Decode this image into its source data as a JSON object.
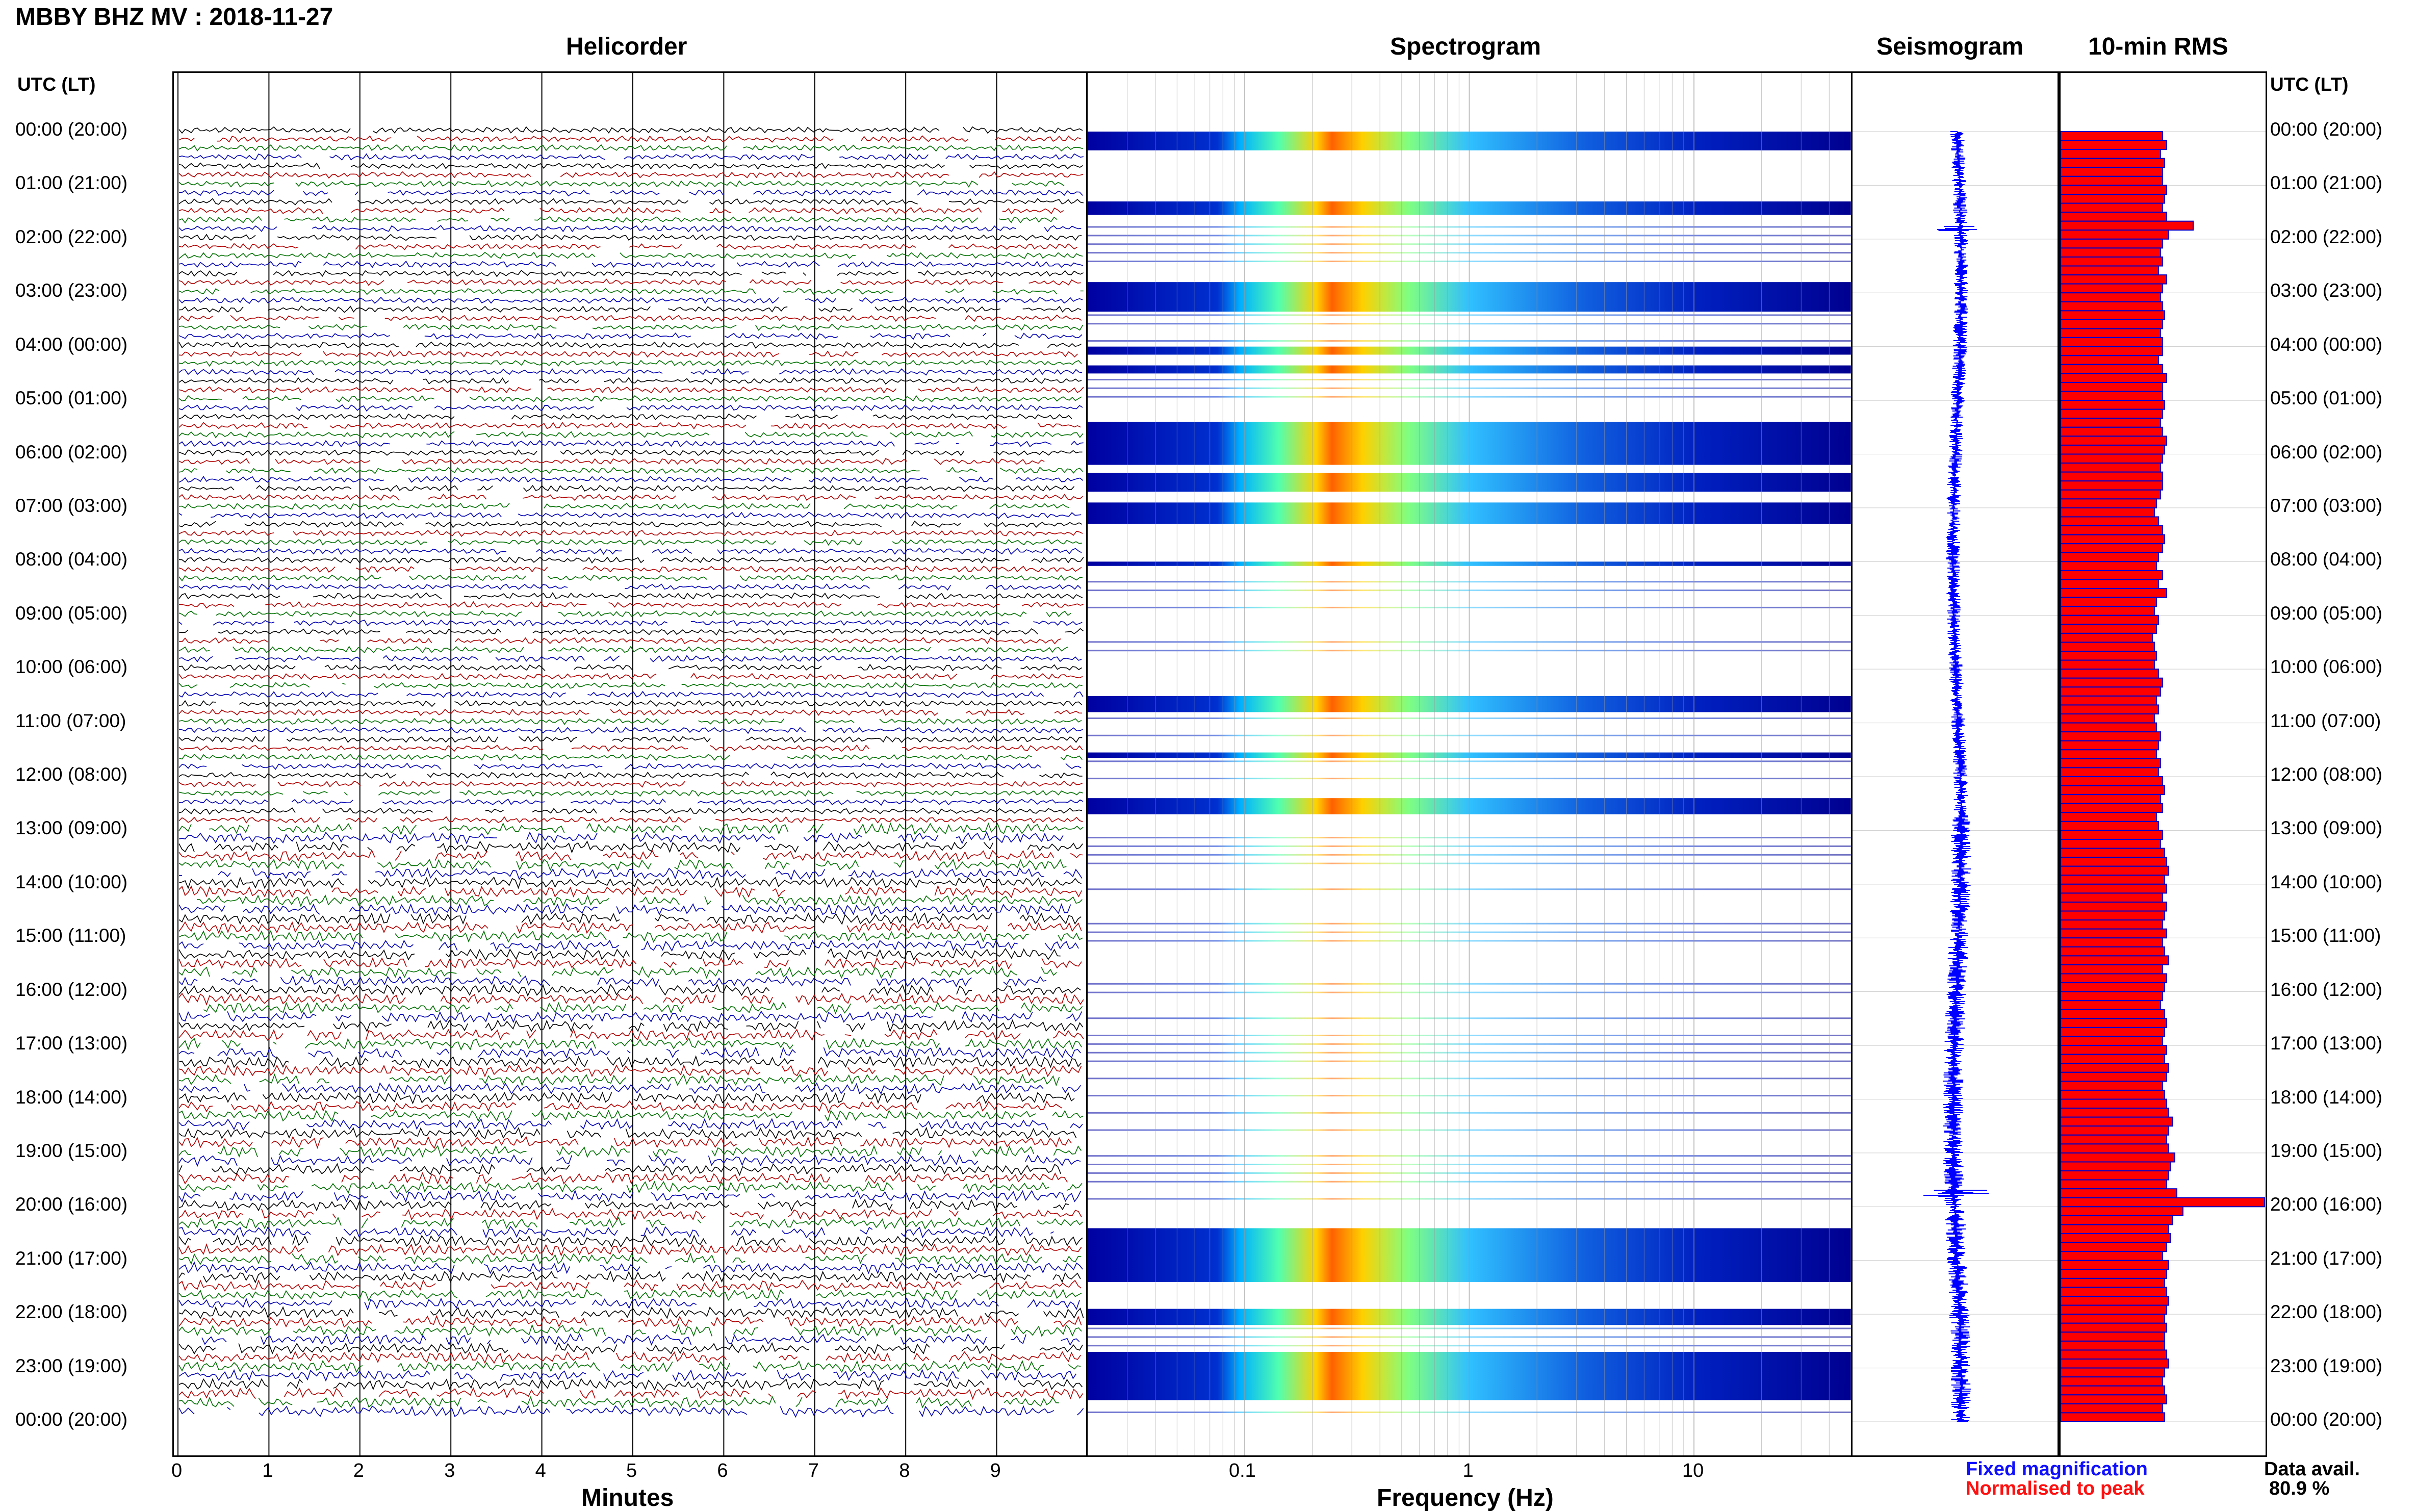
{
  "title": "MBBY BHZ MV : 2018-11-27",
  "left_axis_title": "UTC (LT)",
  "right_axis_title": "UTC (LT)",
  "panels": {
    "helicorder": "Helicorder",
    "spectrogram": "Spectrogram",
    "seismogram": "Seismogram",
    "rms": "10-min RMS"
  },
  "xaxis": {
    "minutes_title": "Minutes",
    "frequency_title": "Frequency (Hz)"
  },
  "legend": {
    "fixed": "Fixed magnification",
    "fixed_color": "#1010ff",
    "normalised": "Normalised to peak",
    "normalised_color": "#ff1010"
  },
  "availability": {
    "label": "Data avail.",
    "value": "80.9 %"
  },
  "colors": {
    "trace_cycle": [
      "#000000",
      "#b00000",
      "#007000",
      "#0000b0"
    ],
    "rms_fill": "#ff0000",
    "rms_edge": "#0000cc",
    "seismo": "#0000ff",
    "spec_low": "#00008c",
    "spec_high": "#ffff00"
  },
  "chart_data": [
    {
      "type": "line",
      "name": "helicorder",
      "title": "Helicorder",
      "xlabel": "Minutes",
      "x_ticks": [
        0,
        1,
        2,
        3,
        4,
        5,
        6,
        7,
        8,
        9
      ],
      "xlim": [
        0,
        10
      ],
      "rows_per_hour": 6,
      "hours": 24,
      "y_tick_labels": [
        "00:00 (20:00)",
        "01:00 (21:00)",
        "02:00 (22:00)",
        "03:00 (23:00)",
        "04:00 (00:00)",
        "05:00 (01:00)",
        "06:00 (02:00)",
        "07:00 (03:00)",
        "08:00 (04:00)",
        "09:00 (05:00)",
        "10:00 (06:00)",
        "11:00 (07:00)",
        "12:00 (08:00)",
        "13:00 (09:00)",
        "14:00 (10:00)",
        "15:00 (11:00)",
        "16:00 (12:00)",
        "17:00 (13:00)",
        "18:00 (14:00)",
        "19:00 (15:00)",
        "20:00 (16:00)",
        "21:00 (17:00)",
        "22:00 (18:00)",
        "23:00 (19:00)",
        "00:00 (20:00)"
      ]
    },
    {
      "type": "heatmap",
      "name": "spectrogram",
      "title": "Spectrogram",
      "xlabel": "Frequency (Hz)",
      "xscale": "log",
      "xlim": [
        0.02,
        50
      ],
      "x_ticks": [
        0.1,
        1,
        10
      ]
    },
    {
      "type": "line",
      "name": "seismogram",
      "title": "Seismogram"
    },
    {
      "type": "bar",
      "name": "rms",
      "title": "10-min RMS",
      "orientation": "horizontal",
      "series": [
        {
          "values": [
            0.5,
            0.52,
            0.49,
            0.51,
            0.5,
            0.5,
            0.52,
            0.51,
            0.5,
            0.52,
            0.65,
            0.53,
            0.5,
            0.49,
            0.5,
            0.48,
            0.52,
            0.5,
            0.49,
            0.5,
            0.51,
            0.5,
            0.49,
            0.5,
            0.5,
            0.48,
            0.5,
            0.52,
            0.5,
            0.5,
            0.51,
            0.5,
            0.49,
            0.5,
            0.52,
            0.51,
            0.5,
            0.49,
            0.5,
            0.5,
            0.49,
            0.47,
            0.46,
            0.48,
            0.5,
            0.51,
            0.5,
            0.48,
            0.47,
            0.5,
            0.48,
            0.52,
            0.47,
            0.46,
            0.48,
            0.47,
            0.45,
            0.46,
            0.47,
            0.46,
            0.48,
            0.5,
            0.49,
            0.47,
            0.48,
            0.46,
            0.47,
            0.49,
            0.48,
            0.47,
            0.49,
            0.48,
            0.5,
            0.51,
            0.49,
            0.5,
            0.47,
            0.48,
            0.5,
            0.49,
            0.51,
            0.52,
            0.53,
            0.51,
            0.52,
            0.5,
            0.52,
            0.51,
            0.5,
            0.52,
            0.5,
            0.51,
            0.53,
            0.5,
            0.52,
            0.51,
            0.5,
            0.49,
            0.51,
            0.52,
            0.51,
            0.5,
            0.52,
            0.51,
            0.53,
            0.52,
            0.5,
            0.51,
            0.52,
            0.53,
            0.55,
            0.53,
            0.52,
            0.53,
            0.56,
            0.54,
            0.53,
            0.52,
            0.57,
            1.0,
            0.6,
            0.55,
            0.53,
            0.54,
            0.52,
            0.5,
            0.53,
            0.52,
            0.51,
            0.52,
            0.53,
            0.52,
            0.51,
            0.52,
            0.51,
            0.51,
            0.52,
            0.53,
            0.51,
            0.5,
            0.51,
            0.52,
            0.5,
            0.51
          ]
        }
      ]
    }
  ]
}
